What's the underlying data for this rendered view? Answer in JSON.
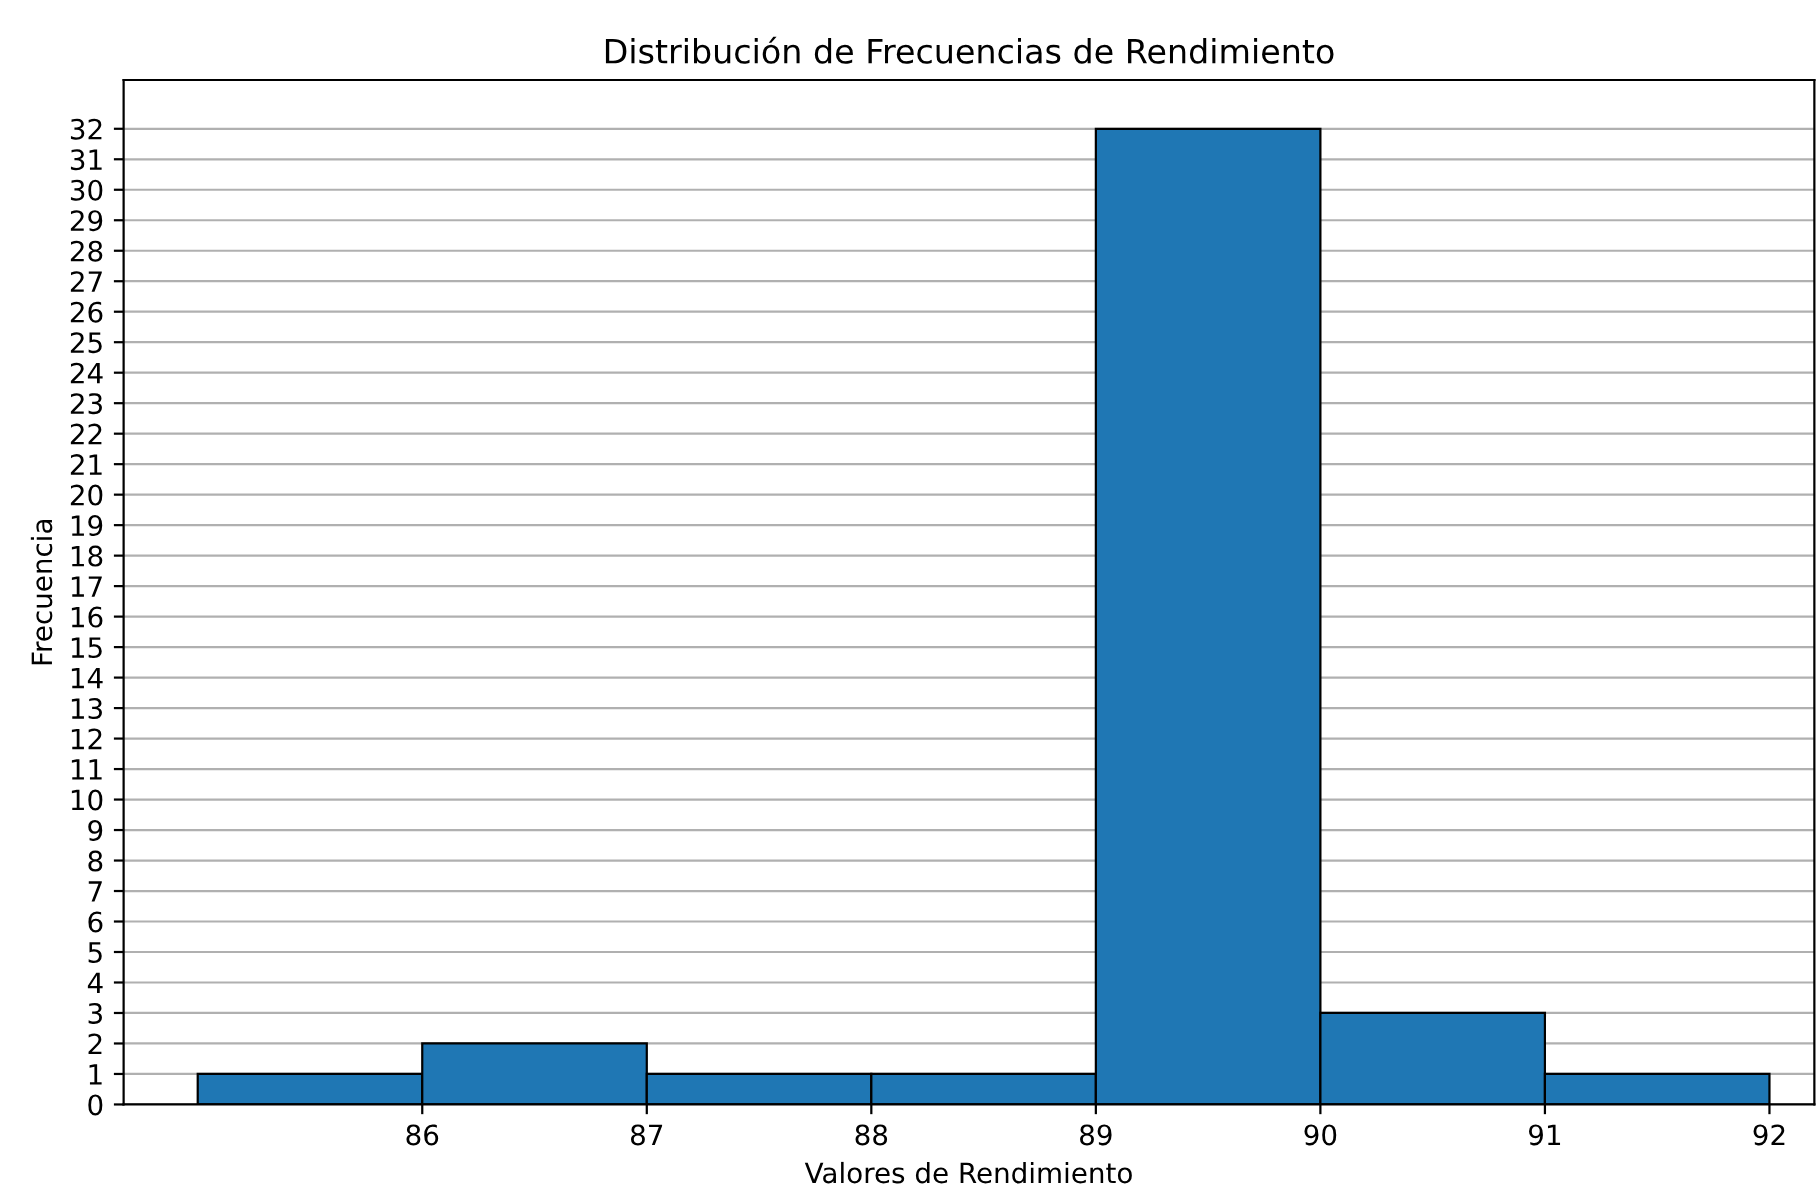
{
  "chart_data": {
    "type": "histogram",
    "title": "Distribución de Frecuencias de Rendimiento",
    "xlabel": "Valores de Rendimiento",
    "ylabel": "Frecuencia",
    "bins": [
      85,
      86,
      87,
      88,
      89,
      90,
      91,
      92
    ],
    "values": [
      1,
      2,
      1,
      1,
      32,
      3,
      1
    ],
    "color": "#1f77b4",
    "xlim": [
      84.67,
      92.2
    ],
    "xticks": [
      86,
      87,
      88,
      89,
      90,
      91,
      92
    ],
    "ylim": [
      0,
      33.6
    ],
    "yticks": [
      0,
      1,
      2,
      3,
      4,
      5,
      6,
      7,
      8,
      9,
      10,
      11,
      12,
      13,
      14,
      15,
      16,
      17,
      18,
      19,
      20,
      21,
      22,
      23,
      24,
      25,
      26,
      27,
      28,
      29,
      30,
      31,
      32
    ],
    "grid": "y"
  }
}
